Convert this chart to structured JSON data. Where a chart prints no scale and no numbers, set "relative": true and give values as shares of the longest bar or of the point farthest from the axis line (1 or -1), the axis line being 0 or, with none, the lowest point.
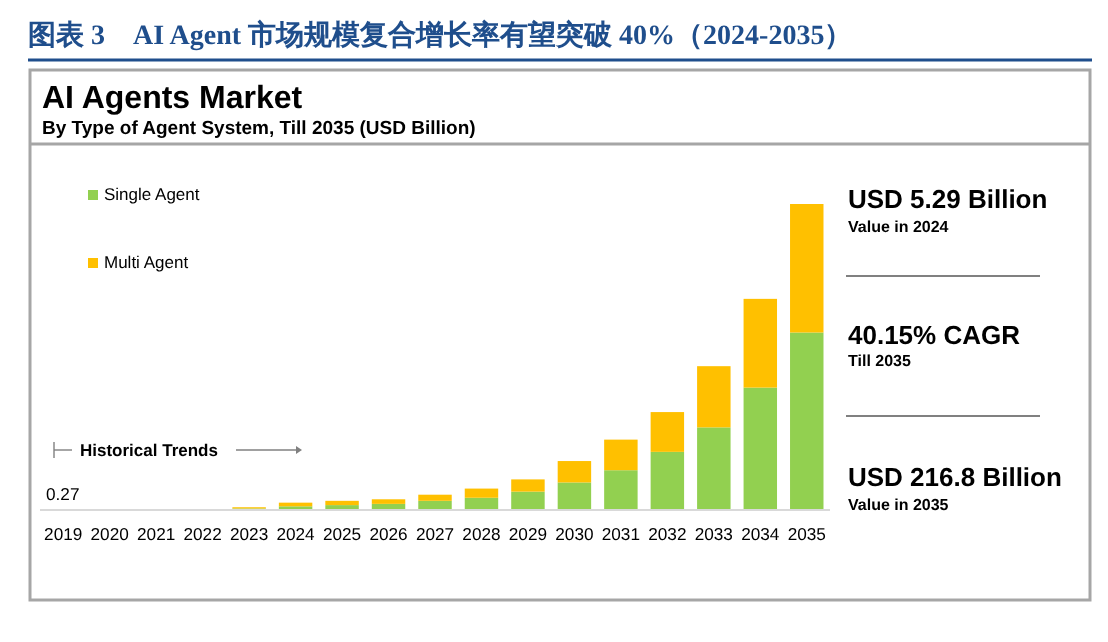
{
  "chart_data": {
    "type": "bar",
    "stacked": true,
    "relative": true,
    "legend": "top left",
    "title": "图表 3　AI Agent 市场规模复合增长率有望突破 40%（2024-2035）",
    "subtitle": "AI Agents Market",
    "categories": [
      "2019",
      "2020",
      "2021",
      "2022",
      "2023",
      "2024",
      "2025",
      "2026",
      "2027",
      "2028",
      "2029",
      "2030",
      "2031",
      "2032",
      "2033",
      "2034",
      "2035"
    ],
    "series": [
      {
        "name": "Single Agent",
        "color": "#92d050",
        "values": [
          null,
          null,
          null,
          null,
          0.005,
          0.012,
          0.016,
          0.02,
          0.03,
          0.04,
          0.06,
          0.09,
          0.13,
          0.19,
          0.27,
          0.4,
          0.58
        ]
      },
      {
        "name": "Multi Agent",
        "color": "#ffc000",
        "values": [
          null,
          null,
          null,
          null,
          0.004,
          0.012,
          0.014,
          0.015,
          0.02,
          0.03,
          0.04,
          0.07,
          0.1,
          0.13,
          0.2,
          0.29,
          0.42
        ]
      }
    ],
    "annotations": [
      "By Type of Agent System, Till 2035 (USD Billion)",
      "Historical Trends",
      "0.27",
      "USD 5.29 Billion",
      "Value in 2024",
      "40.15% CAGR",
      "Till 2035",
      "USD 216.8 Billion",
      "Value in 2035"
    ]
  }
}
